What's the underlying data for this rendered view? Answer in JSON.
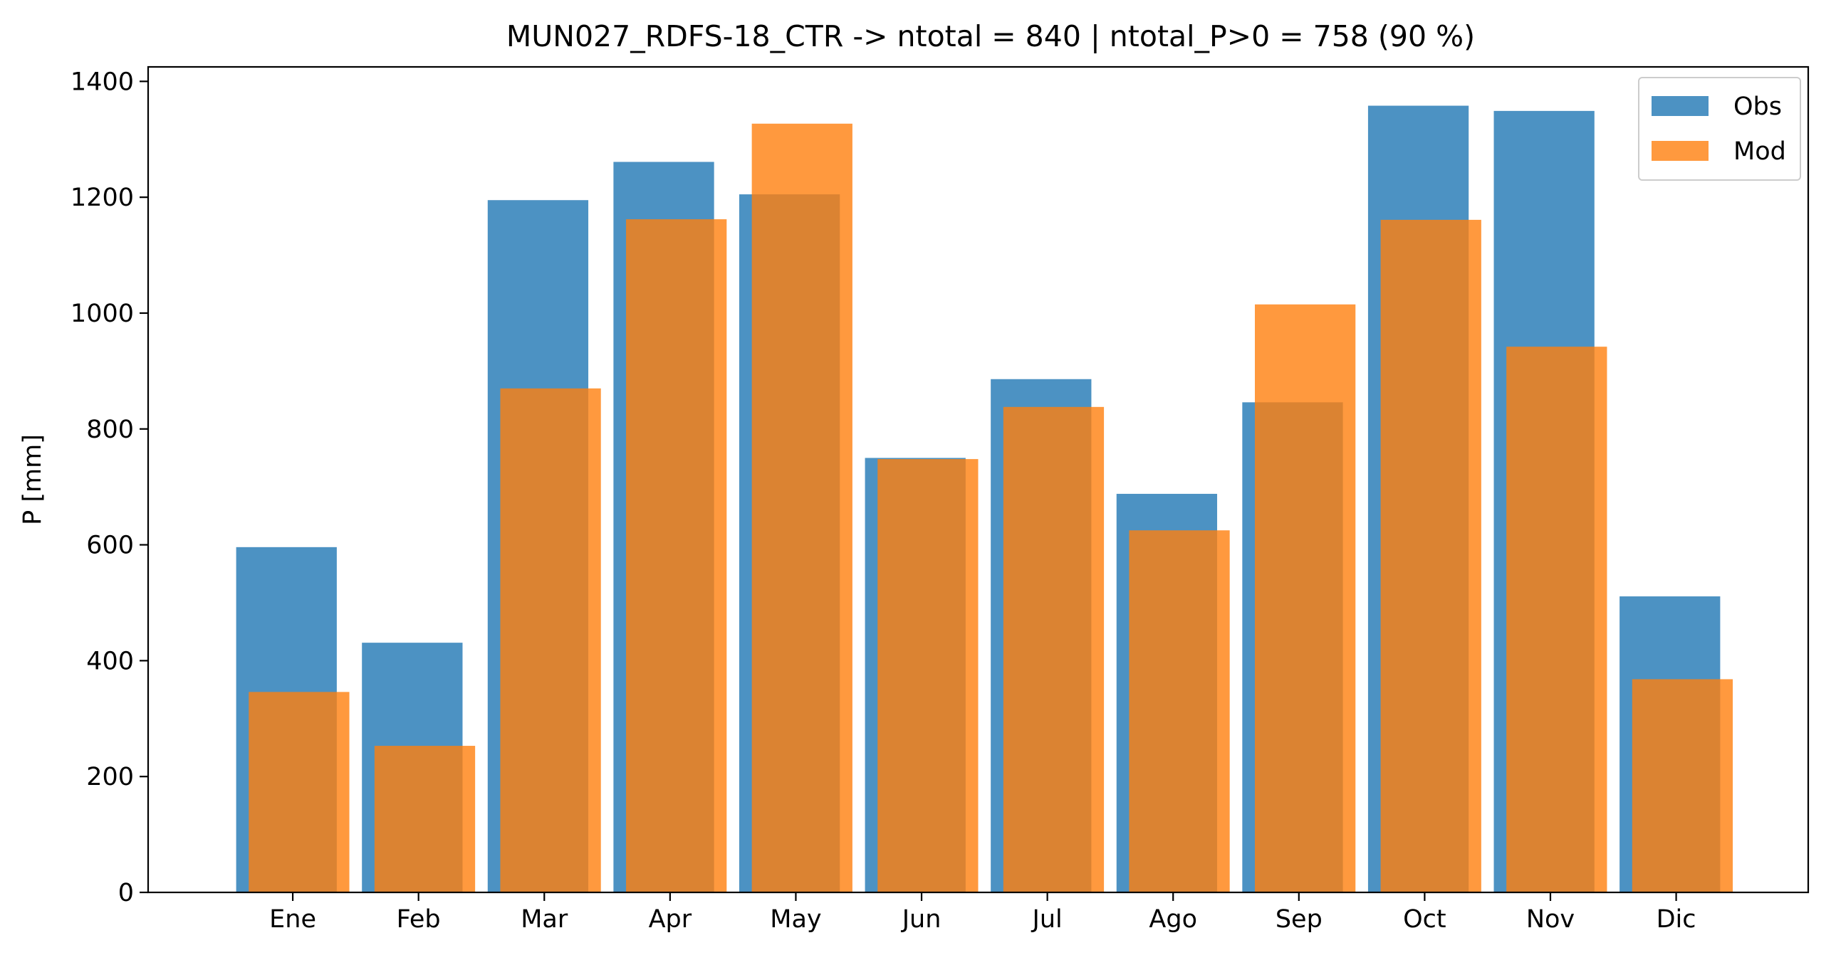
{
  "chart_data": {
    "type": "bar",
    "title": "MUN027_RDFS-18_CTR -> ntotal = 840 | ntotal_P>0 = 758 (90 %)",
    "xlabel": "",
    "ylabel": "P [mm]",
    "categories": [
      "Ene",
      "Feb",
      "Mar",
      "Apr",
      "May",
      "Jun",
      "Jul",
      "Ago",
      "Sep",
      "Oct",
      "Nov",
      "Dic"
    ],
    "series": [
      {
        "name": "Obs",
        "color": "#1f77b4",
        "opacity": 0.8,
        "values": [
          596,
          431,
          1195,
          1261,
          1205,
          750,
          886,
          688,
          846,
          1358,
          1349,
          511
        ]
      },
      {
        "name": "Mod",
        "color": "#ff7f0e",
        "opacity": 0.8,
        "values": [
          346,
          253,
          870,
          1162,
          1327,
          748,
          838,
          625,
          1015,
          1161,
          942,
          368
        ]
      }
    ],
    "ylim": [
      0,
      1425
    ],
    "yticks": [
      0,
      200,
      400,
      600,
      800,
      1000,
      1200,
      1400
    ],
    "legend_position": "top-right",
    "grid": false
  }
}
